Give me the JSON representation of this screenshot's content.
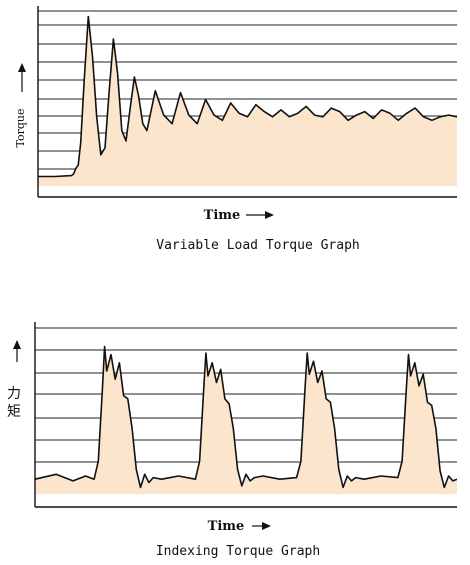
{
  "colors": {
    "fill": "#fbe6cd",
    "line": "#111111",
    "grid": "#222222",
    "background": "#ffffff"
  },
  "chart_data": [
    {
      "type": "area",
      "title": "Variable Load Torque Graph",
      "xlabel": "Time",
      "ylabel": "Torque",
      "grid": true,
      "ylim": [
        0,
        10
      ],
      "xlim": [
        0,
        100
      ],
      "series": [
        {
          "x": [
            0,
            4,
            8,
            8.5,
            9,
            9.6,
            10.2,
            11,
            12,
            13,
            14,
            15,
            16,
            17,
            18,
            19,
            20,
            21,
            22,
            23,
            24,
            25,
            26,
            28,
            30,
            32,
            34,
            36,
            38,
            40,
            42,
            44,
            46,
            48,
            50,
            52,
            54,
            56,
            58,
            60,
            62,
            64,
            66,
            68,
            70,
            72,
            74,
            76,
            78,
            80,
            82,
            84,
            86,
            88,
            90,
            92,
            94,
            96,
            98,
            100
          ],
          "y": [
            0.55,
            0.55,
            0.6,
            0.7,
            1.0,
            1.2,
            2.5,
            6.0,
            9.8,
            7.5,
            4.0,
            1.8,
            2.2,
            5.5,
            8.5,
            6.5,
            3.2,
            2.6,
            4.5,
            6.3,
            5.2,
            3.6,
            3.2,
            5.5,
            4.1,
            3.6,
            5.4,
            4.1,
            3.6,
            5.0,
            4.1,
            3.8,
            4.8,
            4.2,
            4.0,
            4.7,
            4.3,
            4.0,
            4.4,
            4.0,
            4.2,
            4.6,
            4.1,
            4.0,
            4.5,
            4.3,
            3.8,
            4.1,
            4.3,
            3.9,
            4.4,
            4.2,
            3.8,
            4.2,
            4.5,
            4.0,
            3.8,
            4.0,
            4.1,
            4.0
          ]
        }
      ]
    },
    {
      "type": "area",
      "title": "Indexing Torque Graph",
      "xlabel": "Time",
      "ylabel": "力矩",
      "grid": true,
      "ylim": [
        0,
        10
      ],
      "xlim": [
        0,
        100
      ],
      "series": [
        {
          "x": [
            0,
            5,
            9,
            12,
            14,
            15,
            16,
            16.5,
            17,
            18,
            19,
            20,
            21,
            22,
            23,
            24,
            25,
            26,
            27,
            28,
            30,
            34,
            38,
            39,
            40,
            40.5,
            41,
            42,
            43,
            44,
            45,
            46,
            47,
            48,
            49,
            50,
            51,
            52,
            54,
            58,
            62,
            63,
            64,
            64.5,
            65,
            66,
            67,
            68,
            69,
            70,
            71,
            72,
            73,
            74,
            75,
            76,
            78,
            82,
            86,
            87,
            88,
            88.5,
            89,
            90,
            91,
            92,
            93,
            94,
            95,
            96,
            97,
            98,
            99,
            100
          ],
          "y": [
            0.9,
            1.2,
            0.8,
            1.1,
            0.9,
            2.0,
            6.5,
            9.0,
            7.5,
            8.5,
            7.0,
            8.0,
            6.0,
            5.8,
            4.0,
            1.5,
            0.4,
            1.2,
            0.7,
            1.0,
            0.9,
            1.1,
            0.9,
            2.0,
            6.5,
            8.6,
            7.2,
            8.0,
            6.8,
            7.6,
            5.8,
            5.5,
            4.0,
            1.5,
            0.5,
            1.2,
            0.8,
            1.0,
            1.1,
            0.9,
            1.0,
            2.0,
            6.5,
            8.6,
            7.3,
            8.1,
            6.8,
            7.5,
            5.8,
            5.6,
            4.0,
            1.5,
            0.4,
            1.1,
            0.8,
            1.0,
            0.9,
            1.1,
            1.0,
            2.0,
            6.5,
            8.5,
            7.2,
            8.0,
            6.6,
            7.3,
            5.6,
            5.4,
            4.0,
            1.4,
            0.4,
            1.1,
            0.8,
            0.9
          ]
        }
      ]
    }
  ]
}
